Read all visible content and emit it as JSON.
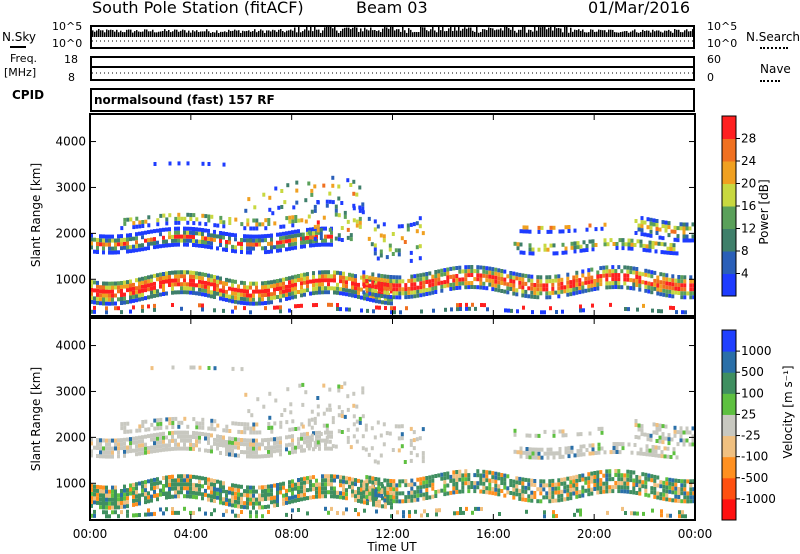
{
  "header": {
    "station": "South Pole Station (fitACF)",
    "beam": "Beam 03",
    "date": "01/Mar/2016"
  },
  "top_panels": {
    "nsky_label": "N.Sky",
    "nsky_ticks": [
      "10^5",
      "10^0"
    ],
    "nsearch_label": "N.Search",
    "freq_label_1": "Freq.",
    "freq_label_2": "[MHz]",
    "freq_ticks": [
      "18",
      "8"
    ],
    "nave_label": "Nave",
    "nave_ticks": [
      "60",
      "0"
    ],
    "cpid_label": "CPID",
    "cpid_text": "normalsound (fast) 157 RF"
  },
  "colors": {
    "power_scale": [
      "#1e3cff",
      "#2a5fb8",
      "#3f7f6a",
      "#5aa05a",
      "#c8d840",
      "#f0a020",
      "#f07020",
      "#ff2020"
    ],
    "velocity_scale": [
      "#ff1010",
      "#ff5010",
      "#ff9020",
      "#f0c080",
      "#c8c8c0",
      "#5ec040",
      "#3f8f60",
      "#2a6fa8",
      "#2040ff"
    ]
  },
  "chart_data": [
    {
      "type": "heatmap",
      "title": "",
      "ylabel": "Slant Range [km]",
      "xlabel": "",
      "x_ticks": [
        "00:00",
        "04:00",
        "08:00",
        "12:00",
        "16:00",
        "20:00",
        "00:00"
      ],
      "y_ticks": [
        "1000",
        "2000",
        "3000",
        "4000"
      ],
      "ylim": [
        200,
        4600
      ],
      "colorbar_label": "Power [dB]",
      "colorbar_ticks": [
        "28",
        "24",
        "20",
        "16",
        "12",
        "8",
        "4"
      ],
      "colorbar_range": [
        0,
        32
      ]
    },
    {
      "type": "heatmap",
      "title": "",
      "ylabel": "Slant Range [km]",
      "xlabel": "Time UT",
      "x_ticks": [
        "00:00",
        "04:00",
        "08:00",
        "12:00",
        "16:00",
        "20:00",
        "00:00"
      ],
      "y_ticks": [
        "1000",
        "2000",
        "3000",
        "4000"
      ],
      "ylim": [
        200,
        4600
      ],
      "colorbar_label": "Velocity [m s⁻¹]",
      "colorbar_ticks": [
        "1000",
        "500",
        "100",
        "25",
        "-25",
        "-100",
        "-500",
        "-1000"
      ]
    }
  ]
}
